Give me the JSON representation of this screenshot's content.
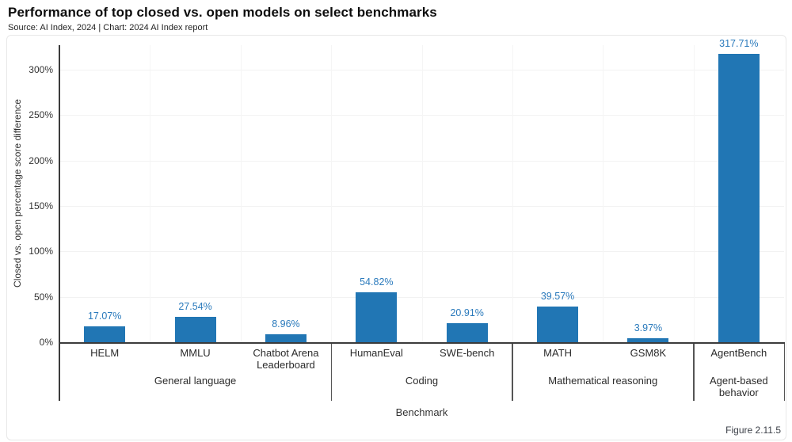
{
  "header": {
    "title": "Performance of top closed vs. open models on select benchmarks",
    "subtitle": "Source: AI Index, 2024 | Chart: 2024 AI Index report"
  },
  "figure_label": "Figure 2.11.5",
  "colors": {
    "bar": "#2176b4",
    "value_label": "#2a7abc",
    "axis": "#3b3b3b",
    "gridline": "#f2f2f2",
    "background": "#ffffff"
  },
  "chart_data": {
    "type": "bar",
    "title": "Performance of top closed vs. open models on select benchmarks",
    "xlabel": "Benchmark",
    "ylabel": "Closed vs. open percentage score difference",
    "ylim": [
      0,
      327
    ],
    "yticks_labels": [
      "0%",
      "50%",
      "100%",
      "150%",
      "200%",
      "250%",
      "300%"
    ],
    "ytick_values": [
      0,
      50,
      100,
      150,
      200,
      250,
      300
    ],
    "grid": true,
    "legend": "none",
    "groups": [
      {
        "label": "General language",
        "bars": [
          {
            "category": "HELM",
            "value": 17.07,
            "value_label": "17.07%"
          },
          {
            "category": "MMLU",
            "value": 27.54,
            "value_label": "27.54%"
          },
          {
            "category": "Chatbot Arena Leaderboard",
            "value": 8.96,
            "value_label": "8.96%"
          }
        ]
      },
      {
        "label": "Coding",
        "bars": [
          {
            "category": "HumanEval",
            "value": 54.82,
            "value_label": "54.82%"
          },
          {
            "category": "SWE-bench",
            "value": 20.91,
            "value_label": "20.91%"
          }
        ]
      },
      {
        "label": "Mathematical reasoning",
        "bars": [
          {
            "category": "MATH",
            "value": 39.57,
            "value_label": "39.57%"
          },
          {
            "category": "GSM8K",
            "value": 3.97,
            "value_label": "3.97%"
          }
        ]
      },
      {
        "label": "Agent-based behavior",
        "bars": [
          {
            "category": "AgentBench",
            "value": 317.71,
            "value_label": "317.71%"
          }
        ]
      }
    ]
  }
}
